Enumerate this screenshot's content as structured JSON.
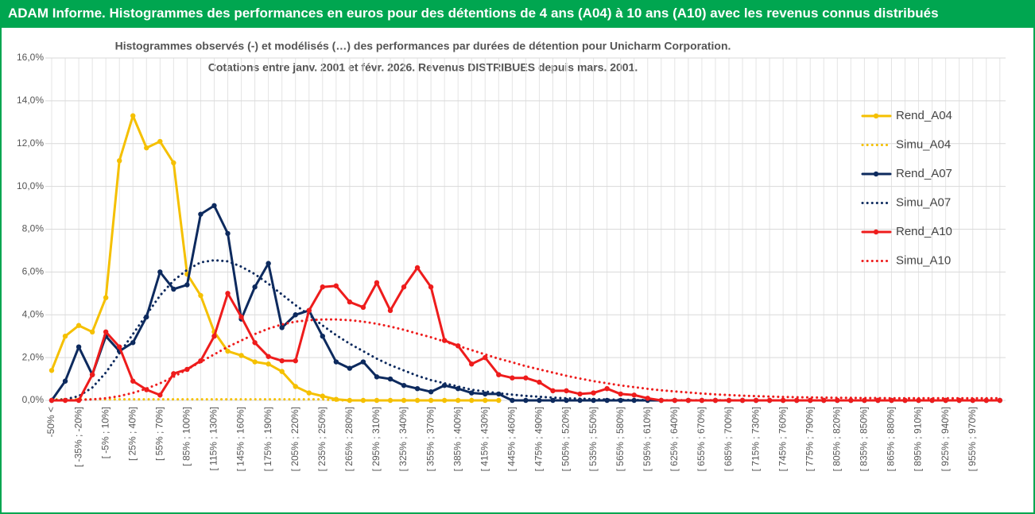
{
  "banner": "ADAM Informe. Histogrammes des performances en euros pour des détentions de 4 ans (A04) à 10 ans (A10) avec les revenus connus distribués",
  "chart_data": {
    "type": "line",
    "title": "Histogrammes observés (-) et modélisés (…) des performances par durées de détention pour Unicharm Corporation.",
    "subtitle": "Cotations entre janv. 2001 et févr. 2026. Revenus DISTRIBUES depuis mars. 2001.",
    "categories": [
      "-50% <",
      null,
      "[ -35% ; -20%]",
      null,
      "[ -5% ; 10%]",
      null,
      "[ 25% ; 40%]",
      null,
      "[ 55% ; 70%]",
      null,
      "[ 85% ; 100%]",
      null,
      "[ 115% ; 130%]",
      null,
      "[ 145% ; 160%]",
      null,
      "[ 175% ; 190%]",
      null,
      "[ 205% ; 220%]",
      null,
      "[ 235% ; 250%]",
      null,
      "[ 265% ; 280%]",
      null,
      "[ 295% ; 310%]",
      null,
      "[ 325% ; 340%]",
      null,
      "[ 355% ; 370%]",
      null,
      "[ 385% ; 400%]",
      null,
      "[ 415% ; 430%]",
      null,
      "[ 445% ; 460%]",
      null,
      "[ 475% ; 490%]",
      null,
      "[ 505% ; 520%]",
      null,
      "[ 535% ; 550%]",
      null,
      "[ 565% ; 580%]",
      null,
      "[ 595% ; 610%]",
      null,
      "[ 625% ; 640%]",
      null,
      "[ 655% ; 670%]",
      null,
      "[ 685% ; 700%]",
      null,
      "[ 715% ; 730%]",
      null,
      "[ 745% ; 760%]",
      null,
      "[ 775% ; 790%]",
      null,
      "[ 805% ; 820%]",
      null,
      "[ 835% ; 850%]",
      null,
      "[ 865% ; 880%]",
      null,
      "[ 895% ; 910%]",
      null,
      "[ 925% ; 940%]",
      null,
      "[ 955% ; 970%]",
      null,
      null
    ],
    "ylim": [
      0,
      16
    ],
    "yticks": [
      {
        "value": 0,
        "label": "0,0%"
      },
      {
        "value": 2,
        "label": "2,0%"
      },
      {
        "value": 4,
        "label": "4,0%"
      },
      {
        "value": 6,
        "label": "6,0%"
      },
      {
        "value": 8,
        "label": "8,0%"
      },
      {
        "value": 10,
        "label": "10,0%"
      },
      {
        "value": 12,
        "label": "12,0%"
      },
      {
        "value": 14,
        "label": "14,0%"
      },
      {
        "value": 16,
        "label": "16,0%"
      }
    ],
    "grid": true,
    "legend": "right",
    "series": [
      {
        "name": "Rend_A04",
        "color": "#f5c000",
        "style": "solid",
        "values": [
          1.4,
          3.0,
          3.5,
          3.2,
          4.8,
          11.2,
          13.3,
          11.8,
          12.1,
          11.1,
          5.9,
          4.9,
          3.2,
          2.3,
          2.1,
          1.8,
          1.7,
          1.35,
          0.65,
          0.35,
          0.2,
          0.05,
          0,
          0,
          0,
          0,
          0,
          0,
          0,
          0,
          0,
          0,
          0,
          0,
          null,
          null,
          null,
          null,
          null,
          null,
          null,
          null,
          null,
          null,
          null,
          null,
          null,
          null,
          null,
          null,
          null,
          null,
          null,
          null,
          null,
          null,
          null,
          null,
          null,
          null,
          null,
          null,
          null,
          null,
          null,
          null,
          null,
          null,
          null,
          null,
          null
        ]
      },
      {
        "name": "Simu_A04",
        "color": "#f5c000",
        "style": "dotted",
        "values": [
          0.05,
          0.05,
          0.05,
          0.05,
          0.05,
          0.05,
          0.05,
          0.05,
          0.05,
          0.05,
          0.05,
          0.05,
          0.05,
          0.05,
          0.05,
          0.05,
          0.05,
          0.05,
          0.05,
          0.05,
          0.05,
          0,
          0,
          0,
          0,
          0,
          0,
          0,
          0,
          0,
          0,
          0,
          0,
          0,
          null,
          null,
          null,
          null,
          null,
          null,
          null,
          null,
          null,
          null,
          null,
          null,
          null,
          null,
          null,
          null,
          null,
          null,
          null,
          null,
          null,
          null,
          null,
          null,
          null,
          null,
          null,
          null,
          null,
          null,
          null,
          null,
          null,
          null,
          null,
          null,
          null
        ]
      },
      {
        "name": "Rend_A07",
        "color": "#0d2a5e",
        "style": "solid",
        "values": [
          0,
          0.9,
          2.5,
          1.2,
          3.0,
          2.3,
          2.7,
          3.9,
          6.0,
          5.2,
          5.4,
          8.7,
          9.1,
          7.8,
          3.8,
          5.3,
          6.4,
          3.4,
          4.0,
          4.2,
          3.0,
          1.8,
          1.5,
          1.8,
          1.1,
          1.0,
          0.7,
          0.55,
          0.4,
          0.7,
          0.55,
          0.35,
          0.3,
          0.3,
          0,
          0,
          0,
          0,
          0,
          0,
          0,
          0,
          0,
          0,
          0,
          0,
          0,
          0,
          0,
          0,
          0,
          0,
          0,
          0,
          0,
          0,
          0,
          0,
          0,
          0,
          0,
          0,
          0,
          0,
          0,
          0,
          0,
          0,
          0,
          0,
          0
        ]
      },
      {
        "name": "Simu_A07",
        "color": "#0d2a5e",
        "style": "dotted",
        "values": [
          0,
          0.05,
          0.2,
          0.6,
          1.3,
          2.2,
          3.1,
          4.0,
          4.9,
          5.6,
          6.1,
          6.45,
          6.55,
          6.5,
          6.25,
          5.9,
          5.45,
          4.95,
          4.45,
          4.0,
          3.5,
          3.05,
          2.65,
          2.3,
          1.95,
          1.65,
          1.4,
          1.15,
          0.95,
          0.8,
          0.65,
          0.5,
          0.42,
          0.33,
          0.27,
          0.21,
          0.17,
          0.13,
          0.1,
          0.08,
          0.06,
          0.04,
          0.03,
          0.02,
          0.02,
          0.01,
          0.01,
          0.01,
          0.01,
          0.01,
          0.01,
          0,
          0,
          0,
          0,
          0,
          0,
          0,
          0,
          0,
          0,
          0,
          0,
          0,
          0,
          0,
          0,
          0,
          0,
          0,
          0
        ]
      },
      {
        "name": "Rend_A10",
        "color": "#ee1c1c",
        "style": "solid",
        "values": [
          0,
          0,
          0,
          1.2,
          3.2,
          2.5,
          0.9,
          0.5,
          0.25,
          1.25,
          1.45,
          1.85,
          3.0,
          5.0,
          3.9,
          2.7,
          2.05,
          1.85,
          1.85,
          4.2,
          5.3,
          5.35,
          4.6,
          4.35,
          5.5,
          4.2,
          5.3,
          6.2,
          5.3,
          2.8,
          2.55,
          1.7,
          2.0,
          1.2,
          1.05,
          1.05,
          0.85,
          0.45,
          0.45,
          0.3,
          0.35,
          0.55,
          0.3,
          0.25,
          0.1,
          0,
          0,
          0,
          0,
          0,
          0,
          0,
          0,
          0,
          0,
          0,
          0,
          0,
          0,
          0,
          0,
          0,
          0,
          0,
          0,
          0,
          0,
          0,
          0,
          0,
          0
        ]
      },
      {
        "name": "Simu_A10",
        "color": "#ee1c1c",
        "style": "dotted",
        "values": [
          0,
          0,
          0.02,
          0.05,
          0.1,
          0.2,
          0.35,
          0.55,
          0.8,
          1.1,
          1.45,
          1.8,
          2.15,
          2.5,
          2.8,
          3.1,
          3.35,
          3.55,
          3.68,
          3.75,
          3.78,
          3.78,
          3.75,
          3.68,
          3.58,
          3.45,
          3.3,
          3.12,
          2.95,
          2.75,
          2.55,
          2.35,
          2.15,
          1.95,
          1.78,
          1.6,
          1.45,
          1.3,
          1.15,
          1.02,
          0.9,
          0.8,
          0.7,
          0.62,
          0.54,
          0.47,
          0.42,
          0.37,
          0.32,
          0.28,
          0.25,
          0.22,
          0.2,
          0.18,
          0.16,
          0.15,
          0.14,
          0.13,
          0.12,
          0.12,
          0.11,
          0.11,
          0.1,
          0.1,
          0.1,
          0.1,
          0.1,
          0.1,
          0.1,
          0.1,
          0.1
        ]
      }
    ]
  }
}
